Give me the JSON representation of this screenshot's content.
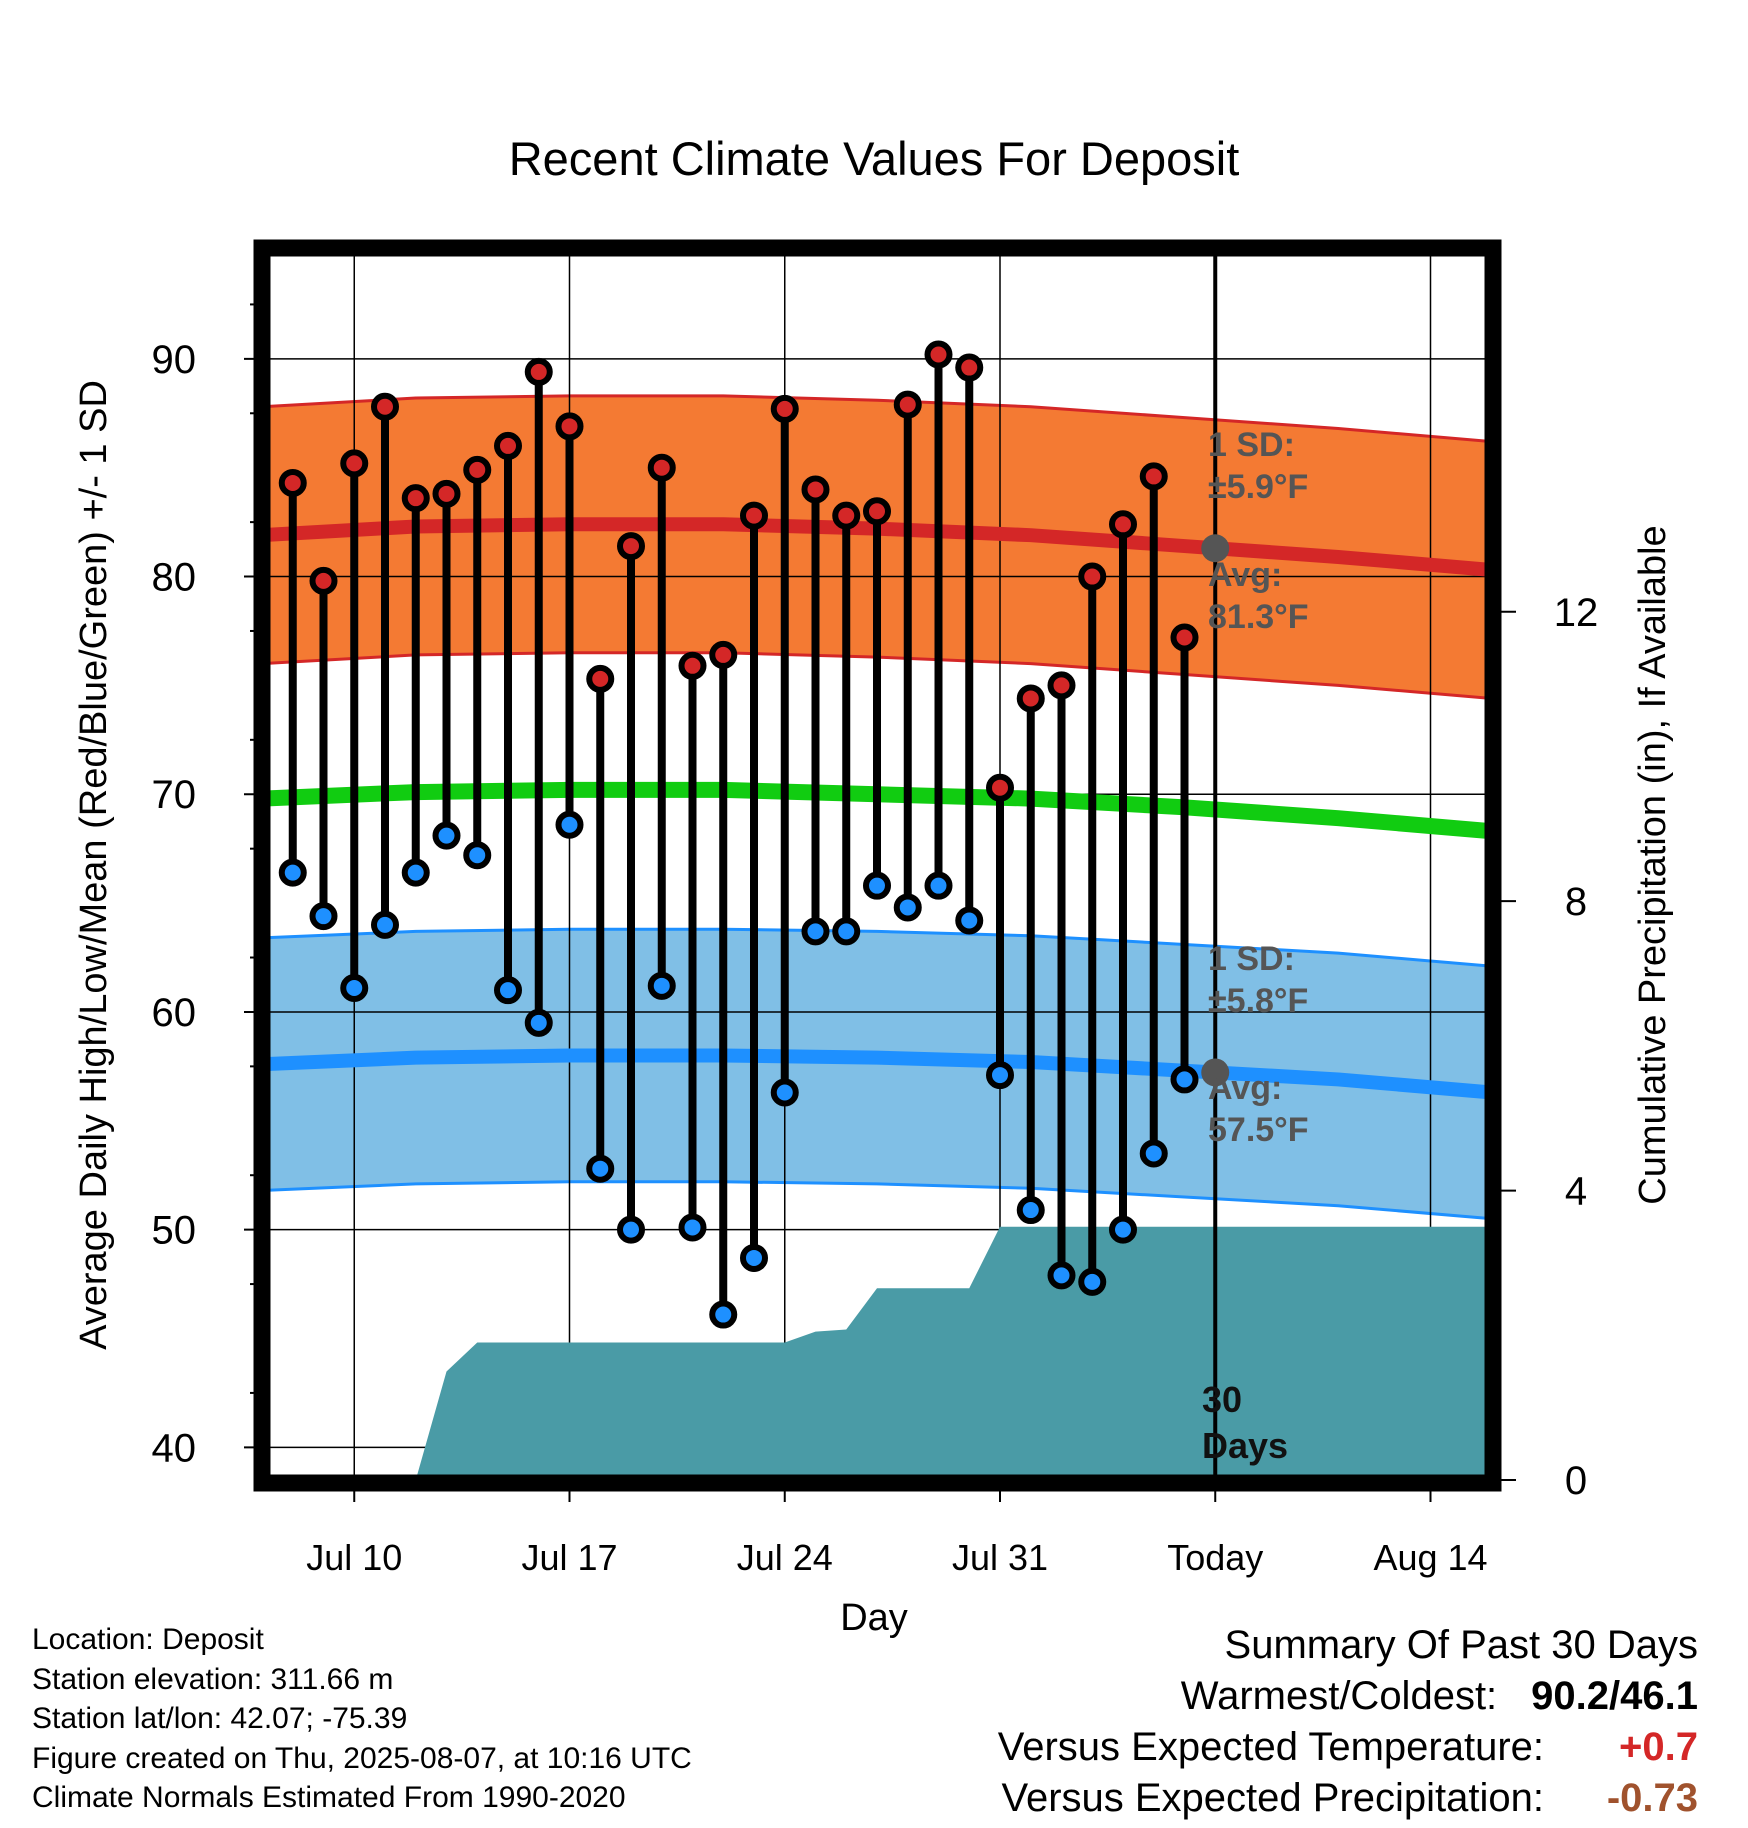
{
  "chart_data": {
    "type": "line",
    "title": "Recent Climate Values For Deposit",
    "xlabel": "Day",
    "ylabel": "Average Daily High/Low/Mean (Red/Blue/Green) +/- 1 SD",
    "y2label": "Cumulative Precipitation (in), If Available",
    "ylim": [
      38.5,
      95
    ],
    "y2lim": [
      0,
      17
    ],
    "y_ticks": [
      "40",
      "50",
      "60",
      "70",
      "80",
      "90"
    ],
    "y2_ticks": [
      "0",
      "4",
      "8",
      "12"
    ],
    "x_ticks": [
      "Jul 10",
      "Jul 17",
      "Jul 24",
      "Jul 31",
      "Today",
      "Aug 14"
    ],
    "x_dates": [
      "2025-07-08",
      "2025-07-09",
      "2025-07-10",
      "2025-07-11",
      "2025-07-12",
      "2025-07-13",
      "2025-07-14",
      "2025-07-15",
      "2025-07-16",
      "2025-07-17",
      "2025-07-18",
      "2025-07-19",
      "2025-07-20",
      "2025-07-21",
      "2025-07-22",
      "2025-07-23",
      "2025-07-24",
      "2025-07-25",
      "2025-07-26",
      "2025-07-27",
      "2025-07-28",
      "2025-07-29",
      "2025-07-30",
      "2025-07-31",
      "2025-08-01",
      "2025-08-02",
      "2025-08-03",
      "2025-08-04",
      "2025-08-05",
      "2025-08-06",
      "2025-08-07"
    ],
    "x_range": [
      "2025-07-07",
      "2025-08-16"
    ],
    "today_date": "2025-08-07",
    "series": [
      {
        "name": "High",
        "dates": [
          "2025-07-08",
          "2025-07-09",
          "2025-07-10",
          "2025-07-11",
          "2025-07-12",
          "2025-07-13",
          "2025-07-14",
          "2025-07-15",
          "2025-07-16",
          "2025-07-17",
          "2025-07-18",
          "2025-07-19",
          "2025-07-20",
          "2025-07-21",
          "2025-07-22",
          "2025-07-23",
          "2025-07-24",
          "2025-07-25",
          "2025-07-26",
          "2025-07-27",
          "2025-07-28",
          "2025-07-29",
          "2025-07-30",
          "2025-07-31",
          "2025-08-01",
          "2025-08-02",
          "2025-08-03",
          "2025-08-04",
          "2025-08-05",
          "2025-08-06"
        ],
        "values": [
          84.3,
          79.8,
          85.2,
          87.8,
          83.6,
          83.8,
          84.9,
          86.0,
          89.4,
          86.9,
          75.3,
          81.4,
          85.0,
          75.9,
          76.4,
          82.8,
          87.7,
          84.0,
          82.8,
          83.0,
          87.9,
          90.2,
          89.6,
          70.3,
          74.4,
          75.0,
          80.0,
          82.4,
          84.6,
          77.2
        ]
      },
      {
        "name": "Low",
        "dates": [
          "2025-07-08",
          "2025-07-09",
          "2025-07-10",
          "2025-07-11",
          "2025-07-12",
          "2025-07-13",
          "2025-07-14",
          "2025-07-15",
          "2025-07-16",
          "2025-07-17",
          "2025-07-18",
          "2025-07-19",
          "2025-07-20",
          "2025-07-21",
          "2025-07-22",
          "2025-07-23",
          "2025-07-24",
          "2025-07-25",
          "2025-07-26",
          "2025-07-27",
          "2025-07-28",
          "2025-07-29",
          "2025-07-30",
          "2025-07-31",
          "2025-08-01",
          "2025-08-02",
          "2025-08-03",
          "2025-08-04",
          "2025-08-05",
          "2025-08-06"
        ],
        "values": [
          66.4,
          64.4,
          61.1,
          64.0,
          66.4,
          68.1,
          67.2,
          61.0,
          59.5,
          68.6,
          52.8,
          50.0,
          61.2,
          50.1,
          46.1,
          48.7,
          56.3,
          63.7,
          63.7,
          65.8,
          64.8,
          65.8,
          64.2,
          57.1,
          50.9,
          47.9,
          47.6,
          50.0,
          53.5,
          56.9
        ]
      },
      {
        "name": "Normal High",
        "dates": [
          "2025-07-07",
          "2025-07-12",
          "2025-07-17",
          "2025-07-22",
          "2025-07-27",
          "2025-08-01",
          "2025-08-06",
          "2025-08-11",
          "2025-08-16"
        ],
        "values": [
          81.9,
          82.3,
          82.4,
          82.4,
          82.2,
          81.9,
          81.4,
          80.9,
          80.3
        ]
      },
      {
        "name": "Normal Low",
        "dates": [
          "2025-07-07",
          "2025-07-12",
          "2025-07-17",
          "2025-07-22",
          "2025-07-27",
          "2025-08-01",
          "2025-08-06",
          "2025-08-11",
          "2025-08-16"
        ],
        "values": [
          57.6,
          57.9,
          58.0,
          58.0,
          57.9,
          57.7,
          57.3,
          56.9,
          56.3
        ]
      },
      {
        "name": "Normal Mean",
        "dates": [
          "2025-07-07",
          "2025-07-12",
          "2025-07-17",
          "2025-07-22",
          "2025-07-27",
          "2025-08-01",
          "2025-08-06",
          "2025-08-11",
          "2025-08-16"
        ],
        "values": [
          69.8,
          70.1,
          70.2,
          70.2,
          70.0,
          69.8,
          69.4,
          68.9,
          68.3
        ]
      },
      {
        "name": "Cumulative Precipitation",
        "dates": [
          "2025-07-10",
          "2025-07-11",
          "2025-07-12",
          "2025-07-13",
          "2025-07-14",
          "2025-07-23",
          "2025-07-24",
          "2025-07-25",
          "2025-07-26",
          "2025-07-27",
          "2025-07-30",
          "2025-07-31",
          "2025-08-16"
        ],
        "values": [
          0.0,
          0.0,
          0.0,
          1.5,
          1.9,
          1.9,
          1.9,
          2.05,
          2.08,
          2.65,
          2.65,
          3.5,
          3.5
        ]
      }
    ],
    "high_sd": 5.9,
    "low_sd": 5.8,
    "grid": true
  },
  "annotations": {
    "high_sd_line1": "1 SD:",
    "high_sd_line2": "±5.9°F",
    "high_avg_line1": "Avg:",
    "high_avg_line2": "81.3°F",
    "low_sd_line1": "1 SD:",
    "low_sd_line2": "±5.8°F",
    "low_avg_line1": "Avg:",
    "low_avg_line2": "57.5°F",
    "days_line1": "30",
    "days_line2": "Days"
  },
  "footer": {
    "location": "Location: Deposit",
    "elevation": "Station elevation: 311.66 m",
    "latlon": "Station lat/lon: 42.07; -75.39",
    "created": "Figure created on Thu, 2025-08-07, at 10:16 UTC",
    "normals": "Climate Normals Estimated From 1990-2020"
  },
  "summary": {
    "title": "Summary Of Past 30 Days",
    "warmest_label": "Warmest/Coldest:",
    "warmest_value": "90.2/46.1",
    "temp_label": "Versus Expected Temperature:",
    "temp_value": "+0.7",
    "precip_label": "Versus Expected Precipitation:",
    "precip_value": "-0.73"
  },
  "colors": {
    "high_band": "#f47a33",
    "high_line": "#d42727",
    "low_band": "#80bfe6",
    "low_line": "#1e90ff",
    "mean_line": "#11cc11",
    "precip": "#4a9ba6",
    "high_dot": "#d42727",
    "low_dot": "#1e90ff",
    "avg_dot": "#555555",
    "temp_value": "#d42727",
    "precip_value": "#a0522d",
    "annotation": "#555555"
  }
}
